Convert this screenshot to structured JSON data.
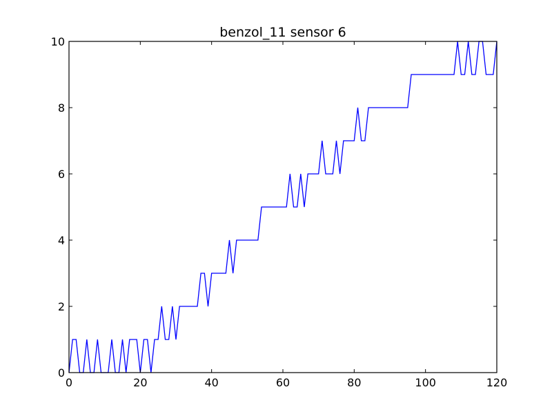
{
  "chart_data": {
    "type": "line",
    "title": "benzol_11 sensor 6",
    "xlabel": "",
    "ylabel": "",
    "xlim": [
      0,
      120
    ],
    "ylim": [
      0,
      10
    ],
    "xticks": [
      0,
      20,
      40,
      60,
      80,
      100,
      120
    ],
    "yticks": [
      0,
      2,
      4,
      6,
      8,
      10
    ],
    "grid": false,
    "legend": "none",
    "series": [
      {
        "color": "#0000ff",
        "x": [
          0,
          1,
          2,
          3,
          4,
          5,
          6,
          7,
          8,
          9,
          10,
          11,
          12,
          13,
          14,
          15,
          16,
          17,
          18,
          19,
          20,
          21,
          22,
          23,
          24,
          25,
          26,
          27,
          28,
          29,
          30,
          31,
          32,
          33,
          34,
          35,
          36,
          37,
          38,
          39,
          40,
          41,
          42,
          43,
          44,
          45,
          46,
          47,
          48,
          49,
          50,
          51,
          52,
          53,
          54,
          55,
          56,
          57,
          58,
          59,
          60,
          61,
          62,
          63,
          64,
          65,
          66,
          67,
          68,
          69,
          70,
          71,
          72,
          73,
          74,
          75,
          76,
          77,
          78,
          79,
          80,
          81,
          82,
          83,
          84,
          85,
          86,
          87,
          88,
          89,
          90,
          91,
          92,
          93,
          94,
          95,
          96,
          97,
          98,
          99,
          100,
          101,
          102,
          103,
          104,
          105,
          106,
          107,
          108,
          109,
          110,
          111,
          112,
          113,
          114,
          115,
          116,
          117,
          118,
          119,
          120
        ],
        "y": [
          0,
          1,
          1,
          0,
          0,
          1,
          0,
          0,
          1,
          0,
          0,
          0,
          1,
          0,
          0,
          1,
          0,
          1,
          1,
          1,
          0,
          1,
          1,
          0,
          1,
          1,
          2,
          1,
          1,
          2,
          1,
          2,
          2,
          2,
          2,
          2,
          2,
          3,
          3,
          2,
          3,
          3,
          3,
          3,
          3,
          4,
          3,
          4,
          4,
          4,
          4,
          4,
          4,
          4,
          5,
          5,
          5,
          5,
          5,
          5,
          5,
          5,
          6,
          5,
          5,
          6,
          5,
          6,
          6,
          6,
          6,
          7,
          6,
          6,
          6,
          7,
          6,
          7,
          7,
          7,
          7,
          8,
          7,
          7,
          8,
          8,
          8,
          8,
          8,
          8,
          8,
          8,
          8,
          8,
          8,
          8,
          9,
          9,
          9,
          9,
          9,
          9,
          9,
          9,
          9,
          9,
          9,
          9,
          9,
          10,
          9,
          9,
          10,
          9,
          9,
          10,
          10,
          9,
          9,
          9,
          10
        ]
      }
    ]
  }
}
